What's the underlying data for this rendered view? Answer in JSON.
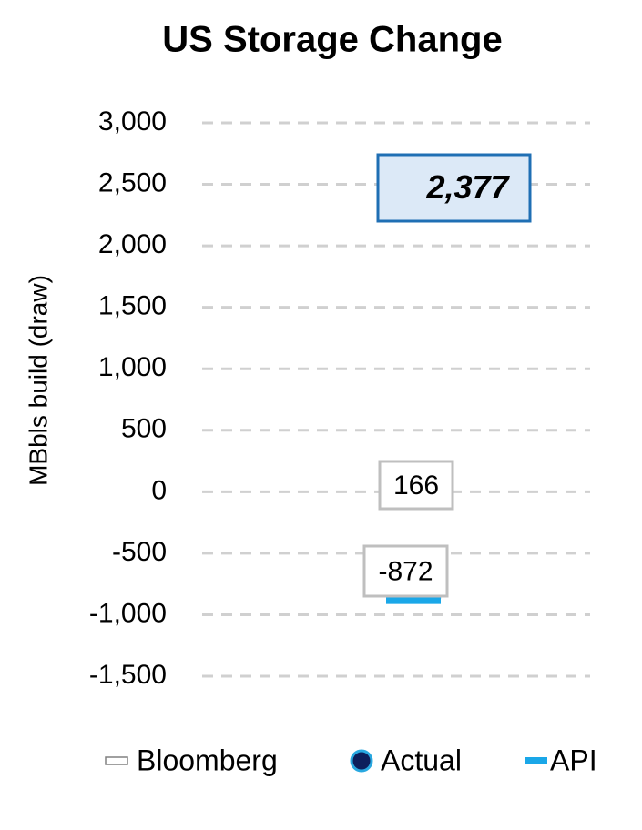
{
  "chart_data": {
    "type": "marker",
    "title": "US Storage Change",
    "ylabel": "MBbls build (draw)",
    "categories": [
      null
    ],
    "series": [
      {
        "name": "Bloomberg",
        "marker": "dash",
        "color": "#ffffff",
        "edgecolor": "#808080",
        "values": [
          166
        ]
      },
      {
        "name": "Actual",
        "marker": "circle",
        "color": "#0d1f5c",
        "edgecolor": "#29a8e0",
        "values": [
          2377
        ],
        "value_labels": [
          "2,377"
        ]
      },
      {
        "name": "API",
        "marker": "dash",
        "color": "#1aa7e8",
        "edgecolor": "#1aa7e8",
        "values": [
          -872
        ]
      }
    ],
    "ylim": [
      -1500,
      3000
    ],
    "yticks": [
      {
        "value": -1500,
        "label": "-1,500"
      },
      {
        "value": -1000,
        "label": "-1,000"
      },
      -500,
      0,
      500,
      {
        "value": 1000,
        "label": "1,000"
      },
      {
        "value": 1500,
        "label": "1,500"
      },
      {
        "value": 2000,
        "label": "2,000"
      },
      {
        "value": 2500,
        "label": "2,500"
      },
      {
        "value": 3000,
        "label": "3,000"
      }
    ],
    "grid": true,
    "legend": "bottom"
  }
}
